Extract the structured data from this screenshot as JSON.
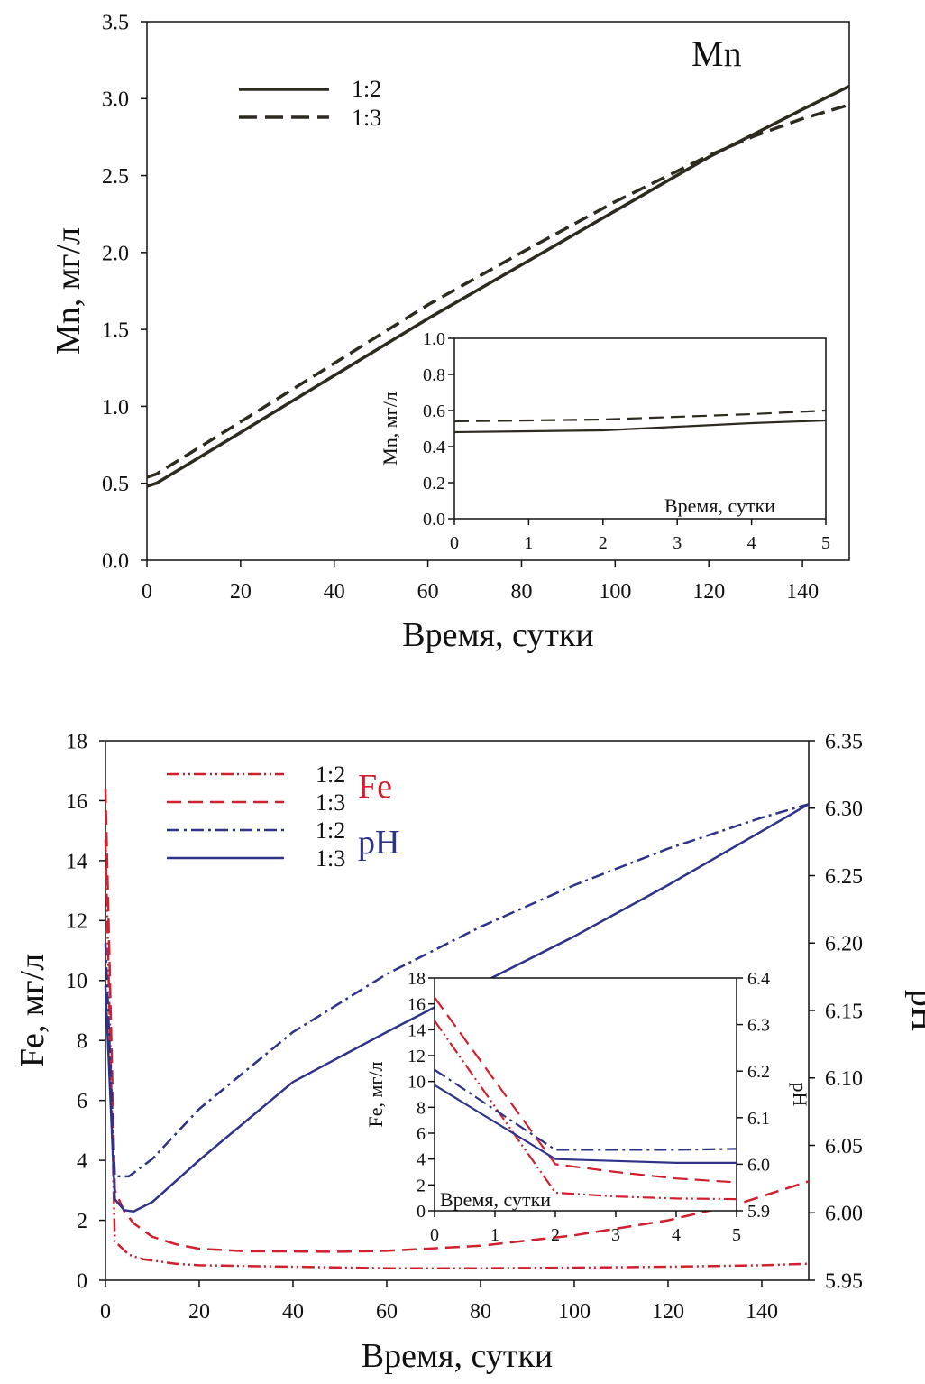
{
  "colors": {
    "dark": "#2d2a20",
    "fe": "#d0202e",
    "ph": "#2e3388"
  },
  "chart_data": [
    {
      "type": "line",
      "title": "Mn",
      "xlabel": "Время, сутки",
      "ylabel": "Mn, мг/л",
      "xlim": [
        0,
        150
      ],
      "ylim": [
        0,
        3.5
      ],
      "xticks": [
        "0",
        "20",
        "40",
        "60",
        "80",
        "100",
        "120",
        "140"
      ],
      "yticks": [
        "0.0",
        "0.5",
        "1.0",
        "1.5",
        "2.0",
        "2.5",
        "3.0",
        "3.5"
      ],
      "legend": {
        "placement": "top-left",
        "entries": [
          "1:2",
          "1:3"
        ]
      },
      "series": [
        {
          "name": "1:2",
          "style": "solid",
          "x": [
            0,
            2,
            20,
            40,
            60,
            80,
            100,
            120,
            140,
            150
          ],
          "y": [
            0.48,
            0.5,
            0.83,
            1.2,
            1.57,
            1.92,
            2.27,
            2.62,
            2.93,
            3.08
          ]
        },
        {
          "name": "1:3",
          "style": "dashed",
          "x": [
            0,
            2,
            20,
            40,
            60,
            80,
            100,
            120,
            130,
            140,
            150
          ],
          "y": [
            0.54,
            0.56,
            0.9,
            1.28,
            1.66,
            2.0,
            2.33,
            2.63,
            2.76,
            2.87,
            2.96
          ]
        }
      ],
      "inset": {
        "xlabel": "Время, сутки",
        "ylabel": "Mn, мг/л",
        "xlim": [
          0,
          5
        ],
        "ylim": [
          0,
          1.0
        ],
        "xticks": [
          "0",
          "1",
          "2",
          "3",
          "4",
          "5"
        ],
        "yticks": [
          "0.0",
          "0.2",
          "0.4",
          "0.6",
          "0.8",
          "1.0"
        ],
        "series": [
          {
            "name": "1:2",
            "style": "solid",
            "x": [
              0,
              1,
              2,
              3,
              4,
              5
            ],
            "y": [
              0.48,
              0.485,
              0.49,
              0.51,
              0.53,
              0.545
            ]
          },
          {
            "name": "1:3",
            "style": "dashed",
            "x": [
              0,
              1,
              2,
              3,
              4,
              5
            ],
            "y": [
              0.54,
              0.545,
              0.55,
              0.565,
              0.58,
              0.6
            ]
          }
        ]
      }
    },
    {
      "type": "line",
      "xlabel": "Время, сутки",
      "ylabel": "Fe, мг/л",
      "y2label": "pH",
      "xlim": [
        0,
        150
      ],
      "ylim": [
        0,
        18
      ],
      "y2lim": [
        5.95,
        6.35
      ],
      "xticks": [
        "0",
        "20",
        "40",
        "60",
        "80",
        "100",
        "120",
        "140"
      ],
      "yticks": [
        "0",
        "2",
        "4",
        "6",
        "8",
        "10",
        "12",
        "14",
        "16",
        "18"
      ],
      "y2ticks": [
        "5.95",
        "6.00",
        "6.05",
        "6.10",
        "6.15",
        "6.20",
        "6.25",
        "6.30",
        "6.35"
      ],
      "legend": {
        "placement": "top-left",
        "entries": [
          "1:2",
          "1:3",
          "1:2",
          "1:3"
        ],
        "group_fe": "Fe",
        "group_ph": "pH"
      },
      "series": [
        {
          "name": "Fe 1:2",
          "axis": "left",
          "style": "dashdotdot",
          "color": "fe",
          "x": [
            0,
            2,
            5,
            8,
            15,
            20,
            40,
            60,
            80,
            100,
            120,
            140,
            150
          ],
          "y": [
            14.7,
            1.3,
            0.85,
            0.7,
            0.55,
            0.5,
            0.45,
            0.4,
            0.4,
            0.42,
            0.45,
            0.5,
            0.55
          ]
        },
        {
          "name": "Fe 1:3",
          "axis": "left",
          "style": "dashed",
          "color": "fe",
          "x": [
            0,
            2,
            4,
            6,
            10,
            15,
            20,
            30,
            50,
            60,
            80,
            100,
            120,
            135,
            150
          ],
          "y": [
            16.4,
            3.0,
            2.3,
            1.9,
            1.45,
            1.2,
            1.05,
            0.97,
            0.95,
            0.98,
            1.15,
            1.5,
            2.0,
            2.55,
            3.3
          ]
        },
        {
          "name": "pH 1:2",
          "axis": "right",
          "style": "dashdot",
          "color": "ph",
          "x": [
            0,
            2,
            5,
            10,
            20,
            40,
            60,
            80,
            100,
            120,
            140,
            150
          ],
          "y": [
            6.2,
            6.027,
            6.027,
            6.04,
            6.077,
            6.134,
            6.177,
            6.212,
            6.243,
            6.27,
            6.293,
            6.303
          ]
        },
        {
          "name": "pH 1:3",
          "axis": "right",
          "style": "solid",
          "color": "ph",
          "x": [
            0,
            2,
            4,
            6,
            10,
            20,
            40,
            60,
            80,
            100,
            120,
            140,
            150
          ],
          "y": [
            6.168,
            6.01,
            6.002,
            6.001,
            6.008,
            6.039,
            6.097,
            6.134,
            6.17,
            6.205,
            6.243,
            6.283,
            6.303
          ]
        }
      ],
      "inset": {
        "xlabel": "Время, сутки",
        "ylabel": "Fe, мг/л",
        "y2label": "pH",
        "xlim": [
          0,
          5
        ],
        "ylim": [
          0,
          18
        ],
        "y2lim": [
          5.9,
          6.4
        ],
        "xticks": [
          "0",
          "1",
          "2",
          "3",
          "4",
          "5"
        ],
        "yticks": [
          "0",
          "2",
          "4",
          "6",
          "8",
          "10",
          "12",
          "14",
          "16",
          "18"
        ],
        "y2ticks": [
          "5.9",
          "6.0",
          "6.1",
          "6.2",
          "6.3",
          "6.4"
        ],
        "series": [
          {
            "name": "Fe 1:2",
            "axis": "left",
            "style": "dashdotdot",
            "color": "fe",
            "x": [
              0,
              2,
              3,
              4,
              5
            ],
            "y": [
              14.7,
              1.4,
              1.1,
              0.95,
              0.9
            ]
          },
          {
            "name": "Fe 1:3",
            "axis": "left",
            "style": "dashed",
            "color": "fe",
            "x": [
              0,
              2,
              3,
              4,
              5
            ],
            "y": [
              16.5,
              3.6,
              3.0,
              2.5,
              2.2
            ]
          },
          {
            "name": "pH 1:2",
            "axis": "right",
            "style": "dashdot",
            "color": "ph",
            "x": [
              0,
              2,
              3,
              4,
              5
            ],
            "y": [
              6.203,
              6.031,
              6.031,
              6.031,
              6.033
            ]
          },
          {
            "name": "pH 1:3",
            "axis": "right",
            "style": "solid",
            "color": "ph",
            "x": [
              0,
              2,
              3,
              4,
              5
            ],
            "y": [
              6.17,
              6.011,
              6.007,
              6.003,
              6.003
            ]
          }
        ]
      }
    }
  ]
}
